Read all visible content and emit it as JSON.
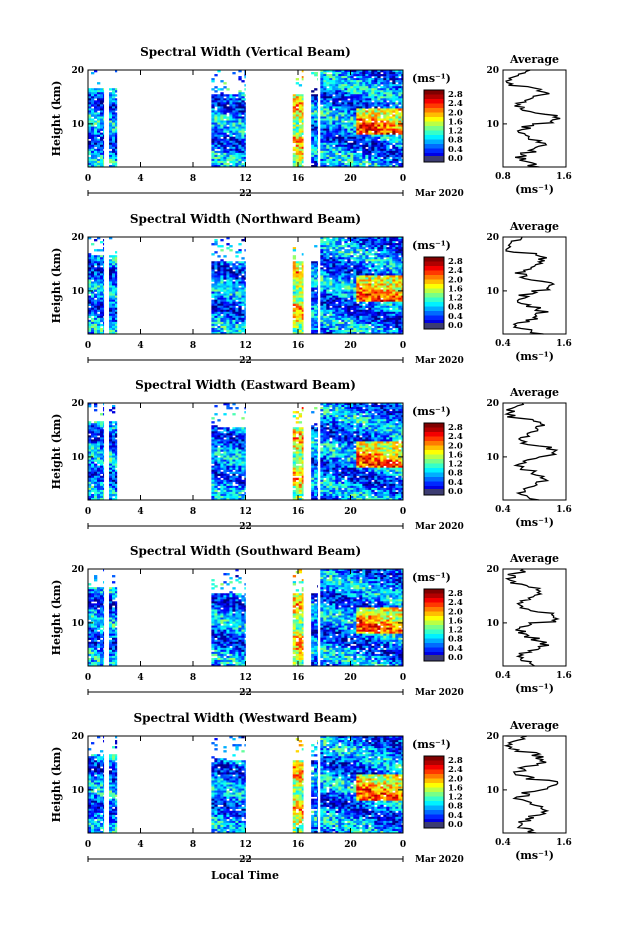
{
  "figure": {
    "bottom_label": "Local Time",
    "date_label": "Mar 2020",
    "day_label": "22",
    "ylabel": "Height (km)",
    "avg_title": "Average",
    "avg_xlabel": "(ms⁻¹)",
    "cbar_unit": "(ms⁻¹)",
    "cbar_ticks": [
      "2.8",
      "2.4",
      "2.0",
      "1.6",
      "1.2",
      "0.8",
      "0.4",
      "0.0"
    ]
  },
  "chart_data": [
    {
      "type": "heatmap",
      "title": "Spectral Width (Vertical Beam)",
      "xlabel": "Local Time",
      "ylabel": "Height (km)",
      "x_ticks": [
        "0",
        "4",
        "8",
        "12",
        "16",
        "20",
        "0"
      ],
      "y_ticks": [
        "20",
        "10"
      ],
      "ylim": [
        2,
        20
      ],
      "data_columns_hours": [
        [
          0,
          1.2
        ],
        [
          1.6,
          2.2
        ],
        [
          9.4,
          12.0
        ],
        [
          15.6,
          16.4
        ],
        [
          17.0,
          17.5
        ],
        [
          17.7,
          24.0
        ]
      ],
      "colorbar": {
        "range": [
          0.0,
          3.0
        ],
        "ticks": [
          2.8,
          2.4,
          2.0,
          1.6,
          1.2,
          0.8,
          0.4,
          0.0
        ],
        "unit": "(ms⁻¹)"
      },
      "average_profile": {
        "title": "Average",
        "xlim_ticks": [
          "0.8",
          "1.6"
        ],
        "y_ticks": [
          "20",
          "10"
        ],
        "xlabel": "(ms⁻¹)"
      }
    },
    {
      "type": "heatmap",
      "title": "Spectral Width (Northward Beam)",
      "xlabel": "Local Time",
      "ylabel": "Height (km)",
      "x_ticks": [
        "0",
        "4",
        "8",
        "12",
        "16",
        "20",
        "0"
      ],
      "y_ticks": [
        "20",
        "10"
      ],
      "ylim": [
        2,
        20
      ],
      "data_columns_hours": [
        [
          0,
          1.2
        ],
        [
          1.6,
          2.2
        ],
        [
          9.4,
          12.0
        ],
        [
          15.6,
          16.4
        ],
        [
          17.0,
          17.5
        ],
        [
          17.7,
          24.0
        ]
      ],
      "colorbar": {
        "range": [
          0.0,
          3.0
        ],
        "ticks": [
          2.8,
          2.4,
          2.0,
          1.6,
          1.2,
          0.8,
          0.4,
          0.0
        ],
        "unit": "(ms⁻¹)"
      },
      "average_profile": {
        "title": "Average",
        "xlim_ticks": [
          "0.4",
          "1.6"
        ],
        "y_ticks": [
          "20",
          "10"
        ],
        "xlabel": "(ms⁻¹)"
      }
    },
    {
      "type": "heatmap",
      "title": "Spectral Width (Eastward Beam)",
      "xlabel": "Local Time",
      "ylabel": "Height (km)",
      "x_ticks": [
        "0",
        "4",
        "8",
        "12",
        "16",
        "20",
        "0"
      ],
      "y_ticks": [
        "20",
        "10"
      ],
      "ylim": [
        2,
        20
      ],
      "data_columns_hours": [
        [
          0,
          1.2
        ],
        [
          1.6,
          2.2
        ],
        [
          9.4,
          12.0
        ],
        [
          15.6,
          16.4
        ],
        [
          17.0,
          17.5
        ],
        [
          17.7,
          24.0
        ]
      ],
      "colorbar": {
        "range": [
          0.0,
          3.0
        ],
        "ticks": [
          2.8,
          2.4,
          2.0,
          1.6,
          1.2,
          0.8,
          0.4,
          0.0
        ],
        "unit": "(ms⁻¹)"
      },
      "average_profile": {
        "title": "Average",
        "xlim_ticks": [
          "0.4",
          "1.6"
        ],
        "y_ticks": [
          "20",
          "10"
        ],
        "xlabel": "(ms⁻¹)"
      }
    },
    {
      "type": "heatmap",
      "title": "Spectral Width (Southward Beam)",
      "xlabel": "Local Time",
      "ylabel": "Height (km)",
      "x_ticks": [
        "0",
        "4",
        "8",
        "12",
        "16",
        "20",
        "0"
      ],
      "y_ticks": [
        "20",
        "10"
      ],
      "ylim": [
        2,
        20
      ],
      "data_columns_hours": [
        [
          0,
          1.2
        ],
        [
          1.6,
          2.2
        ],
        [
          9.4,
          12.0
        ],
        [
          15.6,
          16.4
        ],
        [
          17.0,
          17.5
        ],
        [
          17.7,
          24.0
        ]
      ],
      "colorbar": {
        "range": [
          0.0,
          3.0
        ],
        "ticks": [
          2.8,
          2.4,
          2.0,
          1.6,
          1.2,
          0.8,
          0.4,
          0.0
        ],
        "unit": "(ms⁻¹)"
      },
      "average_profile": {
        "title": "Average",
        "xlim_ticks": [
          "0.4",
          "1.6"
        ],
        "y_ticks": [
          "20",
          "10"
        ],
        "xlabel": "(ms⁻¹)"
      }
    },
    {
      "type": "heatmap",
      "title": "Spectral Width (Westward Beam)",
      "xlabel": "Local Time",
      "ylabel": "Height (km)",
      "x_ticks": [
        "0",
        "4",
        "8",
        "12",
        "16",
        "20",
        "0"
      ],
      "y_ticks": [
        "20",
        "10"
      ],
      "ylim": [
        2,
        20
      ],
      "data_columns_hours": [
        [
          0,
          1.2
        ],
        [
          1.6,
          2.2
        ],
        [
          9.4,
          12.0
        ],
        [
          15.6,
          16.4
        ],
        [
          17.0,
          17.5
        ],
        [
          17.7,
          24.0
        ]
      ],
      "colorbar": {
        "range": [
          0.0,
          3.0
        ],
        "ticks": [
          2.8,
          2.4,
          2.0,
          1.6,
          1.2,
          0.8,
          0.4,
          0.0
        ],
        "unit": "(ms⁻¹)"
      },
      "average_profile": {
        "title": "Average",
        "xlim_ticks": [
          "0.4",
          "1.6"
        ],
        "y_ticks": [
          "20",
          "10"
        ],
        "xlabel": "(ms⁻¹)"
      }
    }
  ]
}
